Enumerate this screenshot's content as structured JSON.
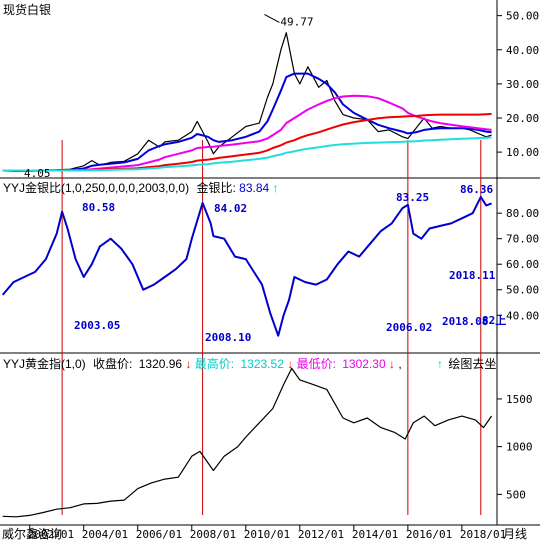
{
  "colors": {
    "silver_price": "#000000",
    "ma_blue": "#0000dd",
    "ma_magenta": "#ee00ee",
    "ma_red": "#ee0000",
    "ma_cyan": "#22dddd",
    "ratio_line": "#0000cc",
    "ratio_label": "#0000cc",
    "gold_price": "#000000",
    "marker_line": "#cc0000",
    "high_color": "#00cccc",
    "low_color": "#ee00ee",
    "arrow_red": "#ee0000",
    "arrow_cyan": "#00cccc"
  },
  "header": {
    "silver_title": "现货白银",
    "ratio_title": "YYJ金银比(1,0,250,0,0,0,2003,0,0)",
    "ratio_label": "金银比:",
    "ratio_value": "83.84",
    "gold_title": "YYJ黄金指(1,0)",
    "gold_close_label": "收盘价:",
    "gold_close_value": "1320.96",
    "gold_high_label": "最高价:",
    "gold_high_value": "1323.52",
    "gold_low_label": "最低价:",
    "gold_low_value": "1302.30",
    "gold_extra": "绘图去坐",
    "footer_brand": "威尔鑫咨询",
    "footer_period": "月线"
  },
  "chart_data": [
    {
      "type": "line",
      "title": "现货白银",
      "x": [
        2001.0,
        2001.5,
        2002.0,
        2002.5,
        2003.0,
        2003.5,
        2004.0,
        2004.3,
        2004.6,
        2005.0,
        2005.5,
        2006.0,
        2006.4,
        2006.8,
        2007.0,
        2007.5,
        2008.0,
        2008.2,
        2008.6,
        2008.8,
        2009.0,
        2009.5,
        2010.0,
        2010.5,
        2010.8,
        2011.0,
        2011.3,
        2011.5,
        2011.8,
        2012.0,
        2012.3,
        2012.7,
        2013.0,
        2013.3,
        2013.6,
        2014.0,
        2014.5,
        2014.9,
        2015.3,
        2015.8,
        2016.0,
        2016.3,
        2016.6,
        2016.9,
        2017.2,
        2017.6,
        2018.0,
        2018.3,
        2018.6,
        2018.9,
        2019.1
      ],
      "series": [
        {
          "name": "price",
          "values": [
            4.5,
            4.4,
            4.6,
            4.7,
            4.8,
            5.0,
            6.0,
            7.5,
            6.2,
            7.0,
            7.3,
            9.5,
            13.5,
            11.5,
            13.0,
            13.5,
            16.0,
            19.0,
            13.0,
            9.5,
            11.5,
            14.5,
            17.5,
            18.5,
            26.0,
            30.0,
            40.0,
            45.0,
            33.0,
            30.0,
            35.0,
            29.0,
            31.0,
            25.0,
            21.0,
            20.0,
            19.5,
            16.0,
            16.5,
            14.5,
            14.0,
            17.0,
            20.0,
            17.0,
            17.5,
            17.0,
            17.0,
            16.5,
            15.5,
            14.5,
            15.0
          ]
        },
        {
          "name": "ma_blue",
          "values": [
            4.6,
            4.5,
            4.5,
            4.6,
            4.7,
            4.8,
            5.2,
            6.0,
            6.3,
            6.6,
            7.0,
            8.0,
            10.5,
            11.8,
            12.3,
            13.0,
            14.2,
            15.3,
            14.5,
            13.5,
            13.0,
            13.5,
            14.5,
            16.0,
            19.0,
            22.5,
            28.0,
            32.0,
            33.0,
            33.0,
            33.0,
            31.5,
            30.0,
            27.5,
            24.0,
            21.5,
            19.5,
            18.0,
            17.0,
            16.0,
            15.5,
            15.8,
            16.5,
            16.8,
            17.0,
            17.0,
            17.0,
            16.8,
            16.5,
            16.0,
            15.8
          ]
        },
        {
          "name": "ma_magenta",
          "values": [
            4.6,
            4.6,
            4.6,
            4.6,
            4.6,
            4.7,
            4.8,
            5.0,
            5.2,
            5.5,
            5.8,
            6.2,
            7.0,
            7.8,
            8.5,
            9.5,
            10.5,
            11.2,
            11.5,
            11.6,
            11.8,
            12.2,
            12.7,
            13.2,
            14.0,
            15.0,
            16.5,
            18.5,
            20.0,
            21.0,
            22.5,
            24.0,
            25.0,
            25.8,
            26.3,
            26.5,
            26.4,
            25.8,
            24.5,
            22.8,
            21.5,
            20.5,
            19.7,
            19.0,
            18.5,
            18.0,
            17.6,
            17.3,
            17.0,
            16.7,
            16.5
          ]
        },
        {
          "name": "ma_red",
          "values": [
            4.6,
            4.6,
            4.6,
            4.6,
            4.6,
            4.6,
            4.7,
            4.8,
            4.9,
            5.0,
            5.1,
            5.3,
            5.6,
            5.9,
            6.2,
            6.6,
            7.1,
            7.5,
            7.8,
            8.0,
            8.3,
            8.8,
            9.3,
            9.8,
            10.5,
            11.2,
            12.0,
            12.8,
            13.5,
            14.2,
            15.0,
            15.8,
            16.6,
            17.4,
            18.1,
            18.8,
            19.4,
            19.9,
            20.2,
            20.4,
            20.5,
            20.6,
            20.8,
            20.9,
            21.0,
            21.0,
            21.0,
            21.0,
            21.0,
            21.1,
            21.2
          ]
        },
        {
          "name": "ma_cyan",
          "values": [
            4.6,
            4.6,
            4.6,
            4.6,
            4.6,
            4.6,
            4.6,
            4.7,
            4.7,
            4.8,
            4.9,
            5.0,
            5.2,
            5.4,
            5.6,
            5.8,
            6.1,
            6.3,
            6.5,
            6.7,
            6.9,
            7.2,
            7.6,
            8.0,
            8.4,
            8.8,
            9.3,
            9.8,
            10.2,
            10.6,
            11.0,
            11.4,
            11.8,
            12.1,
            12.3,
            12.5,
            12.7,
            12.8,
            12.9,
            13.0,
            13.1,
            13.2,
            13.4,
            13.5,
            13.6,
            13.8,
            13.9,
            14.0,
            14.1,
            14.2,
            14.3
          ]
        }
      ],
      "y_ticks": [
        10.0,
        20.0,
        30.0,
        40.0,
        50.0
      ],
      "annotations": [
        {
          "text": "49.77",
          "x": 2010.8,
          "y": 49.77
        },
        {
          "text": "4.05",
          "x": 2002.2,
          "y": 4.05
        }
      ],
      "xlim": [
        2000.9,
        2019.3
      ],
      "ylim": [
        3,
        54
      ]
    },
    {
      "type": "line",
      "title": "YYJ金银比",
      "x": [
        2001.0,
        2001.4,
        2001.8,
        2002.2,
        2002.6,
        2003.0,
        2003.2,
        2003.4,
        2003.7,
        2004.0,
        2004.3,
        2004.6,
        2005.0,
        2005.4,
        2005.8,
        2006.2,
        2006.6,
        2007.0,
        2007.4,
        2007.8,
        2008.0,
        2008.4,
        2008.7,
        2008.8,
        2009.2,
        2009.6,
        2010.0,
        2010.3,
        2010.6,
        2010.9,
        2011.2,
        2011.4,
        2011.6,
        2011.8,
        2012.2,
        2012.6,
        2013.0,
        2013.4,
        2013.8,
        2014.2,
        2014.6,
        2015.0,
        2015.4,
        2015.8,
        2016.0,
        2016.2,
        2016.5,
        2016.8,
        2017.2,
        2017.6,
        2018.0,
        2018.4,
        2018.7,
        2018.9,
        2019.1
      ],
      "series": [
        {
          "name": "金银比",
          "values": [
            48,
            53,
            55,
            57,
            62,
            72,
            80.58,
            74,
            62,
            55,
            60,
            67,
            70,
            66,
            60,
            50,
            52,
            55,
            58,
            62,
            70,
            84.02,
            76,
            71,
            70,
            63,
            62,
            57,
            52,
            41,
            32,
            40,
            46,
            55,
            53,
            52,
            54,
            60,
            65,
            63,
            68,
            73,
            76,
            82,
            83.25,
            72,
            70,
            74,
            75,
            76,
            78,
            80,
            86.36,
            83,
            83.84
          ]
        }
      ],
      "y_ticks": [
        40.0,
        50.0,
        60.0,
        70.0,
        80.0
      ],
      "annotations": [
        {
          "text": "80.58",
          "x": 2003.2,
          "y": 80.58
        },
        {
          "text": "84.02",
          "x": 2008.4,
          "y": 84.02
        },
        {
          "text": "83.25",
          "x": 2016.0,
          "y": 83.25
        },
        {
          "text": "86.36",
          "x": 2018.7,
          "y": 86.36
        },
        {
          "text": "2003.05"
        },
        {
          "text": "2008.10"
        },
        {
          "text": "2006.02"
        },
        {
          "text": "2018.08"
        },
        {
          "text": "2018.11"
        },
        {
          "text": "82上"
        }
      ],
      "xlim": [
        2000.9,
        2019.3
      ],
      "ylim": [
        26,
        93
      ]
    },
    {
      "type": "line",
      "title": "YYJ黄金指",
      "x": [
        2001.0,
        2001.5,
        2002.0,
        2002.5,
        2003.0,
        2003.5,
        2004.0,
        2004.5,
        2005.0,
        2005.5,
        2006.0,
        2006.5,
        2007.0,
        2007.5,
        2008.0,
        2008.3,
        2008.8,
        2009.2,
        2009.7,
        2010.0,
        2010.5,
        2011.0,
        2011.4,
        2011.7,
        2012.0,
        2012.5,
        2013.0,
        2013.3,
        2013.6,
        2014.0,
        2014.5,
        2015.0,
        2015.5,
        2015.9,
        2016.2,
        2016.6,
        2017.0,
        2017.5,
        2018.0,
        2018.5,
        2018.8,
        2019.1
      ],
      "series": [
        {
          "name": "收盘价",
          "values": [
            270,
            265,
            280,
            310,
            345,
            360,
            400,
            405,
            430,
            440,
            560,
            620,
            660,
            680,
            900,
            950,
            750,
            900,
            1000,
            1100,
            1250,
            1400,
            1650,
            1820,
            1700,
            1650,
            1600,
            1450,
            1300,
            1250,
            1300,
            1200,
            1150,
            1080,
            1250,
            1320,
            1220,
            1280,
            1320,
            1280,
            1200,
            1320.96
          ]
        }
      ],
      "y_ticks": [
        500,
        1000,
        1500
      ],
      "xlim": [
        2000.9,
        2019.3
      ],
      "ylim": [
        200,
        1950
      ]
    }
  ],
  "x_axis": {
    "labels": [
      "2002/01",
      "2004/01",
      "2006/01",
      "2008/01",
      "2010/01",
      "2012/01",
      "2014/01",
      "2016/01",
      "2018/01"
    ],
    "values": [
      2002,
      2004,
      2006,
      2008,
      2010,
      2012,
      2014,
      2016,
      2018
    ]
  },
  "markers": [
    2003.2,
    2008.4,
    2016.0,
    2018.7
  ]
}
